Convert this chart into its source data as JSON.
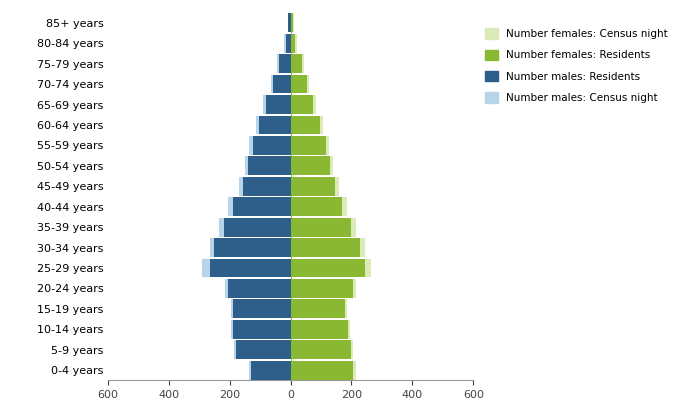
{
  "age_groups": [
    "0-4 years",
    "5-9 years",
    "10-14 years",
    "15-19 years",
    "20-24 years",
    "25-29 years",
    "30-34 years",
    "35-39 years",
    "40-44 years",
    "45-49 years",
    "50-54 years",
    "55-59 years",
    "60-64 years",
    "65-69 years",
    "70-74 years",
    "75-79 years",
    "80-84 years",
    "85+ years"
  ],
  "males_census": [
    135,
    185,
    195,
    195,
    215,
    290,
    265,
    235,
    205,
    170,
    150,
    135,
    115,
    90,
    65,
    45,
    20,
    10
  ],
  "males_residents": [
    130,
    180,
    190,
    190,
    205,
    265,
    250,
    220,
    190,
    155,
    140,
    125,
    105,
    80,
    58,
    38,
    16,
    8
  ],
  "females_census": [
    215,
    205,
    195,
    185,
    215,
    265,
    245,
    215,
    185,
    160,
    140,
    125,
    105,
    82,
    62,
    44,
    20,
    10
  ],
  "females_residents": [
    205,
    198,
    188,
    178,
    205,
    245,
    228,
    198,
    170,
    145,
    128,
    115,
    95,
    72,
    54,
    36,
    15,
    7
  ],
  "color_males_census": "#b8d4e8",
  "color_males_residents": "#2e5f8a",
  "color_females_census": "#daeab8",
  "color_females_residents": "#8ab832",
  "xlim": 600,
  "xtick_step": 200,
  "background_color": "#ffffff",
  "legend_labels": [
    "Number females: Census night",
    "Number females: Residents",
    "Number males: Residents",
    "Number males: Census night"
  ]
}
